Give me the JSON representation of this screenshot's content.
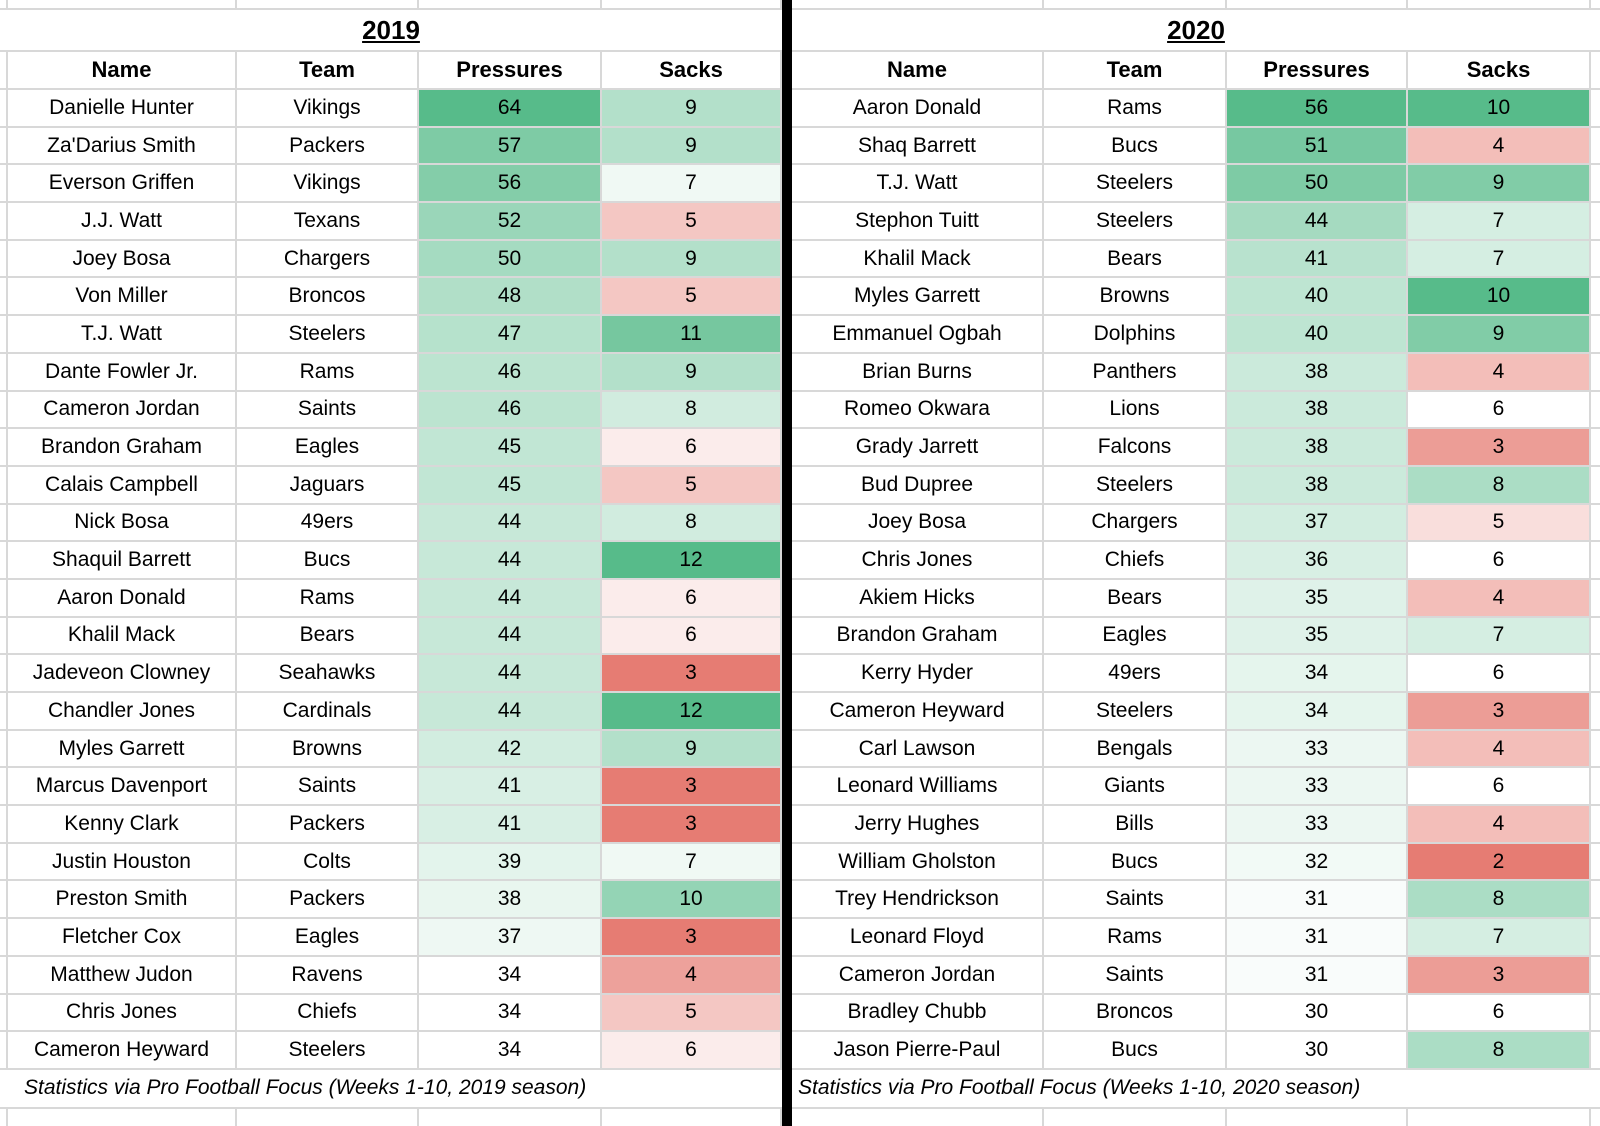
{
  "colors": {
    "scale_red": "#e67c73",
    "scale_white": "#ffffff",
    "scale_green": "#57bb8a",
    "gridline": "#d8d8d8",
    "divider": "#000000",
    "text": "#000000",
    "background": "#ffffff"
  },
  "tables": [
    {
      "title": "2019",
      "columns": [
        "Name",
        "Team",
        "Pressures",
        "Sacks"
      ],
      "footer": "Statistics via Pro Football Focus (Weeks 1-10, 2019 season)",
      "scales": {
        "pressures": {
          "type": "two-color",
          "min": 34,
          "max": 64
        },
        "sacks": {
          "type": "three-color",
          "min": 3,
          "mid": 6.5,
          "max": 12
        }
      },
      "rows": [
        {
          "name": "Danielle Hunter",
          "team": "Vikings",
          "pressures": 64,
          "sacks": 9
        },
        {
          "name": "Za'Darius Smith",
          "team": "Packers",
          "pressures": 57,
          "sacks": 9
        },
        {
          "name": "Everson Griffen",
          "team": "Vikings",
          "pressures": 56,
          "sacks": 7
        },
        {
          "name": "J.J. Watt",
          "team": "Texans",
          "pressures": 52,
          "sacks": 5
        },
        {
          "name": "Joey Bosa",
          "team": "Chargers",
          "pressures": 50,
          "sacks": 9
        },
        {
          "name": "Von Miller",
          "team": "Broncos",
          "pressures": 48,
          "sacks": 5
        },
        {
          "name": "T.J. Watt",
          "team": "Steelers",
          "pressures": 47,
          "sacks": 11
        },
        {
          "name": "Dante Fowler Jr.",
          "team": "Rams",
          "pressures": 46,
          "sacks": 9
        },
        {
          "name": "Cameron Jordan",
          "team": "Saints",
          "pressures": 46,
          "sacks": 8
        },
        {
          "name": "Brandon Graham",
          "team": "Eagles",
          "pressures": 45,
          "sacks": 6
        },
        {
          "name": "Calais Campbell",
          "team": "Jaguars",
          "pressures": 45,
          "sacks": 5
        },
        {
          "name": "Nick Bosa",
          "team": "49ers",
          "pressures": 44,
          "sacks": 8
        },
        {
          "name": "Shaquil Barrett",
          "team": "Bucs",
          "pressures": 44,
          "sacks": 12
        },
        {
          "name": "Aaron Donald",
          "team": "Rams",
          "pressures": 44,
          "sacks": 6
        },
        {
          "name": "Khalil Mack",
          "team": "Bears",
          "pressures": 44,
          "sacks": 6
        },
        {
          "name": "Jadeveon Clowney",
          "team": "Seahawks",
          "pressures": 44,
          "sacks": 3
        },
        {
          "name": "Chandler Jones",
          "team": "Cardinals",
          "pressures": 44,
          "sacks": 12
        },
        {
          "name": "Myles Garrett",
          "team": "Browns",
          "pressures": 42,
          "sacks": 9
        },
        {
          "name": "Marcus Davenport",
          "team": "Saints",
          "pressures": 41,
          "sacks": 3
        },
        {
          "name": "Kenny Clark",
          "team": "Packers",
          "pressures": 41,
          "sacks": 3
        },
        {
          "name": "Justin Houston",
          "team": "Colts",
          "pressures": 39,
          "sacks": 7
        },
        {
          "name": "Preston Smith",
          "team": "Packers",
          "pressures": 38,
          "sacks": 10
        },
        {
          "name": "Fletcher Cox",
          "team": "Eagles",
          "pressures": 37,
          "sacks": 3
        },
        {
          "name": "Matthew Judon",
          "team": "Ravens",
          "pressures": 34,
          "sacks": 4
        },
        {
          "name": "Chris Jones",
          "team": "Chiefs",
          "pressures": 34,
          "sacks": 5
        },
        {
          "name": "Cameron Heyward",
          "team": "Steelers",
          "pressures": 34,
          "sacks": 6
        }
      ]
    },
    {
      "title": "2020",
      "columns": [
        "Name",
        "Team",
        "Pressures",
        "Sacks"
      ],
      "footer": "Statistics via Pro Football Focus (Weeks 1-10, 2020 season)",
      "scales": {
        "pressures": {
          "type": "two-color",
          "min": 30,
          "max": 56
        },
        "sacks": {
          "type": "three-color",
          "min": 2,
          "mid": 6,
          "max": 10
        }
      },
      "rows": [
        {
          "name": "Aaron Donald",
          "team": "Rams",
          "pressures": 56,
          "sacks": 10
        },
        {
          "name": "Shaq Barrett",
          "team": "Bucs",
          "pressures": 51,
          "sacks": 4
        },
        {
          "name": "T.J. Watt",
          "team": "Steelers",
          "pressures": 50,
          "sacks": 9
        },
        {
          "name": "Stephon Tuitt",
          "team": "Steelers",
          "pressures": 44,
          "sacks": 7
        },
        {
          "name": "Khalil Mack",
          "team": "Bears",
          "pressures": 41,
          "sacks": 7
        },
        {
          "name": "Myles Garrett",
          "team": "Browns",
          "pressures": 40,
          "sacks": 10
        },
        {
          "name": "Emmanuel Ogbah",
          "team": "Dolphins",
          "pressures": 40,
          "sacks": 9
        },
        {
          "name": "Brian Burns",
          "team": "Panthers",
          "pressures": 38,
          "sacks": 4
        },
        {
          "name": "Romeo Okwara",
          "team": "Lions",
          "pressures": 38,
          "sacks": 6
        },
        {
          "name": "Grady Jarrett",
          "team": "Falcons",
          "pressures": 38,
          "sacks": 3
        },
        {
          "name": "Bud Dupree",
          "team": "Steelers",
          "pressures": 38,
          "sacks": 8
        },
        {
          "name": "Joey Bosa",
          "team": "Chargers",
          "pressures": 37,
          "sacks": 5
        },
        {
          "name": "Chris Jones",
          "team": "Chiefs",
          "pressures": 36,
          "sacks": 6
        },
        {
          "name": "Akiem Hicks",
          "team": "Bears",
          "pressures": 35,
          "sacks": 4
        },
        {
          "name": "Brandon Graham",
          "team": "Eagles",
          "pressures": 35,
          "sacks": 7
        },
        {
          "name": "Kerry Hyder",
          "team": "49ers",
          "pressures": 34,
          "sacks": 6
        },
        {
          "name": "Cameron Heyward",
          "team": "Steelers",
          "pressures": 34,
          "sacks": 3
        },
        {
          "name": "Carl Lawson",
          "team": "Bengals",
          "pressures": 33,
          "sacks": 4
        },
        {
          "name": "Leonard Williams",
          "team": "Giants",
          "pressures": 33,
          "sacks": 6
        },
        {
          "name": "Jerry Hughes",
          "team": "Bills",
          "pressures": 33,
          "sacks": 4
        },
        {
          "name": "William Gholston",
          "team": "Bucs",
          "pressures": 32,
          "sacks": 2
        },
        {
          "name": "Trey Hendrickson",
          "team": "Saints",
          "pressures": 31,
          "sacks": 8
        },
        {
          "name": "Leonard Floyd",
          "team": "Rams",
          "pressures": 31,
          "sacks": 7
        },
        {
          "name": "Cameron Jordan",
          "team": "Saints",
          "pressures": 31,
          "sacks": 3
        },
        {
          "name": "Bradley Chubb",
          "team": "Broncos",
          "pressures": 30,
          "sacks": 6
        },
        {
          "name": "Jason Pierre-Paul",
          "team": "Bucs",
          "pressures": 30,
          "sacks": 8
        }
      ]
    }
  ]
}
